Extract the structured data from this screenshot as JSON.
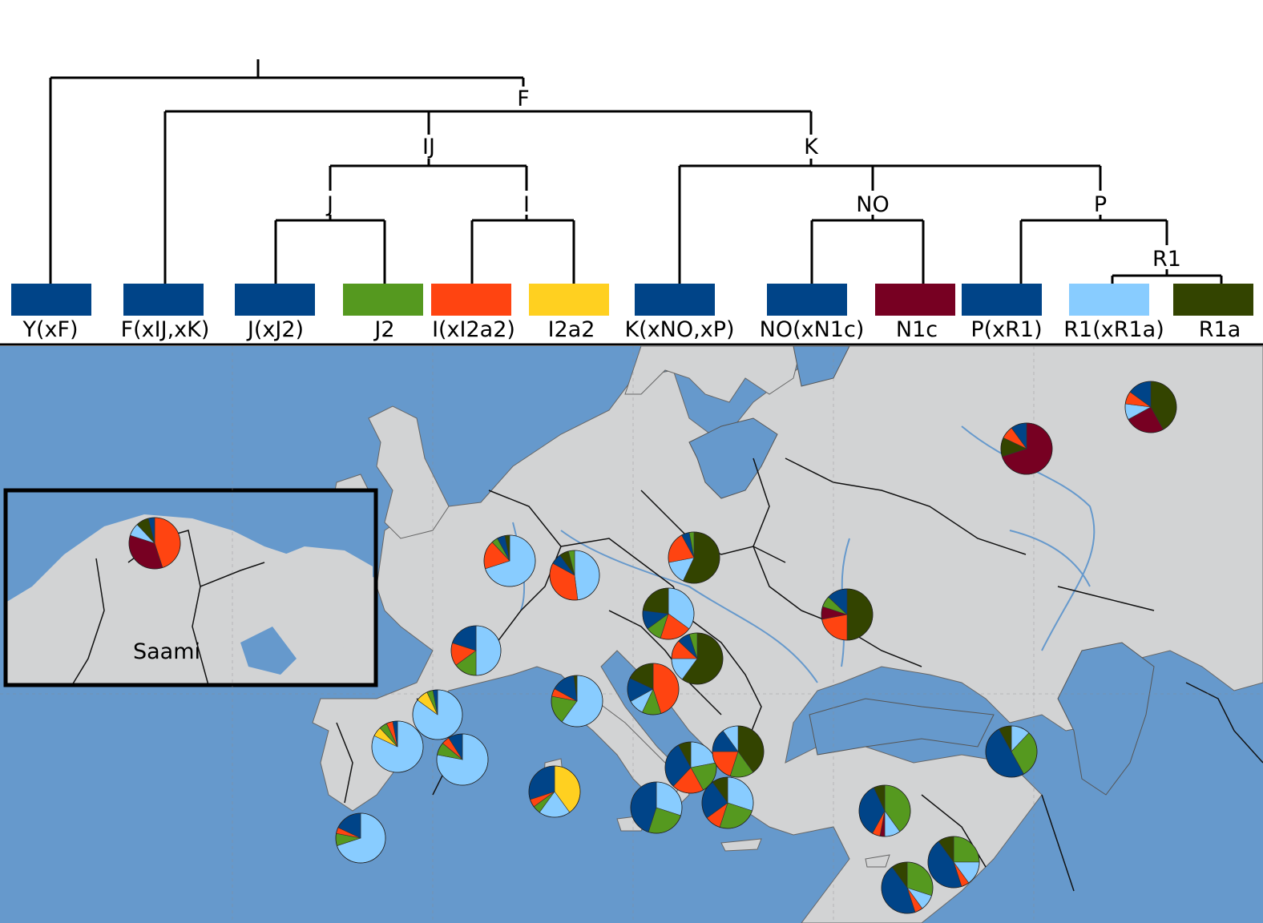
{
  "colors": {
    "sea": "#6699cc",
    "land": "#d2d3d4",
    "Y(xF)": "#004488",
    "F(xIJ,xK)": "#004488",
    "J(xJ2)": "#004488",
    "J2": "#55991f",
    "I(xI2a2)": "#ff4411",
    "I2a2": "#ffd020",
    "K(xNO,xP)": "#004488",
    "NO(xN1c)": "#004488",
    "N1c": "#770022",
    "P(xR1)": "#004488",
    "R1(xR1a)": "#88ccff",
    "R1a": "#334400"
  },
  "tree": {
    "nodes": [
      "F",
      "IJ",
      "K",
      "J",
      "I",
      "NO",
      "P",
      "R1"
    ],
    "haplogroups": [
      "Y(xF)",
      "F(xIJ,xK)",
      "J(xJ2)",
      "J2",
      "I(xI2a2)",
      "I2a2",
      "K(xNO,xP)",
      "NO(xN1c)",
      "N1c",
      "P(xR1)",
      "R1(xR1a)",
      "R1a"
    ]
  },
  "inset": {
    "label": "Saami"
  },
  "pies": [
    {
      "name": "saami",
      "values": {
        "I(xI2a2)": 45,
        "N1c": 35,
        "R1(xR1a)": 8,
        "R1a": 8,
        "K(xNO,xP)": 4
      }
    },
    {
      "name": "netherlands",
      "values": {
        "R1(xR1a)": 70,
        "I(xI2a2)": 18,
        "J2": 4,
        "K(xNO,xP)": 5,
        "R1a": 3
      }
    },
    {
      "name": "germany",
      "values": {
        "R1(xR1a)": 48,
        "I(xI2a2)": 35,
        "K(xNO,xP)": 7,
        "R1a": 6,
        "J2": 4
      }
    },
    {
      "name": "poland",
      "values": {
        "R1a": 57,
        "R1(xR1a)": 15,
        "I(xI2a2)": 20,
        "K(xNO,xP)": 5,
        "J2": 3
      }
    },
    {
      "name": "czech",
      "values": {
        "R1(xR1a)": 35,
        "I(xI2a2)": 20,
        "J2": 10,
        "K(xNO,xP)": 12,
        "R1a": 23
      }
    },
    {
      "name": "austria-hungary",
      "values": {
        "R1a": 60,
        "R1(xR1a)": 15,
        "I(xI2a2)": 12,
        "K(xNO,xP)": 8,
        "J2": 5
      }
    },
    {
      "name": "ukraine",
      "values": {
        "R1a": 50,
        "I(xI2a2)": 22,
        "N1c": 8,
        "J2": 7,
        "K(xNO,xP)": 13
      }
    },
    {
      "name": "russia-north",
      "values": {
        "N1c": 70,
        "R1a": 12,
        "I(xI2a2)": 8,
        "K(xNO,xP)": 10
      }
    },
    {
      "name": "volga",
      "values": {
        "R1a": 42,
        "N1c": 25,
        "R1(xR1a)": 10,
        "I(xI2a2)": 8,
        "K(xNO,xP)": 15
      }
    },
    {
      "name": "france",
      "values": {
        "R1(xR1a)": 50,
        "J2": 15,
        "I(xI2a2)": 15,
        "K(xNO,xP)": 20
      }
    },
    {
      "name": "switzerland-italy",
      "values": {
        "R1(xR1a)": 60,
        "J2": 18,
        "I(xI2a2)": 5,
        "K(xNO,xP)": 15,
        "R1a": 2
      }
    },
    {
      "name": "croatia",
      "values": {
        "I(xI2a2)": 45,
        "J2": 12,
        "R1(xR1a)": 10,
        "K(xNO,xP)": 15,
        "R1a": 18
      }
    },
    {
      "name": "france-south",
      "values": {
        "R1(xR1a)": 85,
        "I2a2": 8,
        "J2": 4,
        "K(xNO,xP)": 3
      }
    },
    {
      "name": "iberia-north",
      "values": {
        "R1(xR1a)": 82,
        "I2a2": 6,
        "J2": 5,
        "I(xI2a2)": 4,
        "K(xNO,xP)": 3
      }
    },
    {
      "name": "catalonia",
      "values": {
        "R1(xR1a)": 78,
        "J2": 8,
        "I(xI2a2)": 5,
        "K(xNO,xP)": 9
      }
    },
    {
      "name": "sardinia",
      "values": {
        "I2a2": 40,
        "R1(xR1a)": 20,
        "J2": 5,
        "I(xI2a2)": 5,
        "K(xNO,xP)": 30
      }
    },
    {
      "name": "iberia-south",
      "values": {
        "R1(xR1a)": 70,
        "J2": 8,
        "I(xI2a2)": 4,
        "K(xNO,xP)": 18
      }
    },
    {
      "name": "serbia",
      "values": {
        "R1(xR1a)": 22,
        "J2": 20,
        "I(xI2a2)": 20,
        "K(xNO,xP)": 30,
        "R1a": 8
      }
    },
    {
      "name": "bulgaria",
      "values": {
        "R1a": 40,
        "J2": 15,
        "I(xI2a2)": 20,
        "K(xNO,xP)": 15,
        "R1(xR1a)": 10
      }
    },
    {
      "name": "italy-south",
      "values": {
        "R1(xR1a)": 30,
        "J2": 25,
        "K(xNO,xP)": 45
      }
    },
    {
      "name": "greece",
      "values": {
        "R1(xR1a)": 30,
        "J2": 25,
        "I(xI2a2)": 10,
        "K(xNO,xP)": 25,
        "R1a": 10
      }
    },
    {
      "name": "caucasus",
      "values": {
        "R1(xR1a)": 12,
        "J2": 30,
        "K(xNO,xP)": 50,
        "R1a": 8
      }
    },
    {
      "name": "anatolia",
      "values": {
        "J2": 40,
        "R1(xR1a)": 10,
        "N1c": 3,
        "I(xI2a2)": 5,
        "K(xNO,xP)": 35,
        "R1a": 7
      }
    },
    {
      "name": "syria",
      "values": {
        "J2": 25,
        "R1(xR1a)": 15,
        "I(xI2a2)": 5,
        "K(xNO,xP)": 45,
        "R1a": 10
      }
    },
    {
      "name": "levant",
      "values": {
        "J2": 30,
        "R1(xR1a)": 10,
        "I(xI2a2)": 5,
        "K(xNO,xP)": 45,
        "R1a": 10
      }
    }
  ]
}
